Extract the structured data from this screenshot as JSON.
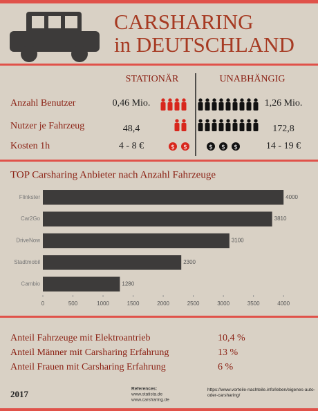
{
  "title_lines": [
    "CARSHARING",
    "in DEUTSCHLAND"
  ],
  "comparison": {
    "columns": [
      "STATIONÄR",
      "UNABHÄNGIG"
    ],
    "rows": [
      {
        "label": "Anzahl Benutzer",
        "left": "0,46 Mio.",
        "right": "1,26 Mio."
      },
      {
        "label": "Nutzer je Fahrzeug",
        "left": "48,4",
        "right": "172,8"
      },
      {
        "label": "Kosten 1h",
        "left": "4 - 8 €",
        "right": "14 - 19 €"
      }
    ]
  },
  "chart_data": {
    "type": "bar",
    "orientation": "horizontal",
    "title": "TOP Carsharing Anbieter nach Anzahl Fahrzeuge",
    "categories": [
      "Flinkster",
      "Car2Go",
      "DriveNow",
      "Stadtmobil",
      "Cambio"
    ],
    "values": [
      4000,
      3810,
      3100,
      2300,
      1280
    ],
    "color": "#3d3b3a",
    "xlim": [
      0,
      4400
    ],
    "xticks": [
      0,
      500,
      1000,
      1500,
      2000,
      2500,
      3000,
      3500,
      4000
    ]
  },
  "stats": [
    {
      "label": "Anteil Fahrzeuge mit Elektroantrieb",
      "value": "10,4 %"
    },
    {
      "label": "Anteil Männer mit Carsharing Erfahrung",
      "value": "13 %"
    },
    {
      "label": "Anteil Frauen mit Carsharing Erfahrung",
      "value": "6 %"
    }
  ],
  "footer": {
    "year": "2017",
    "references": [
      "References:",
      "www.statista.de",
      "www.carsharing.de"
    ],
    "source": "https://www.vorteile-nachteile.info/leben/eigenes-auto-oder-carsharing/"
  }
}
